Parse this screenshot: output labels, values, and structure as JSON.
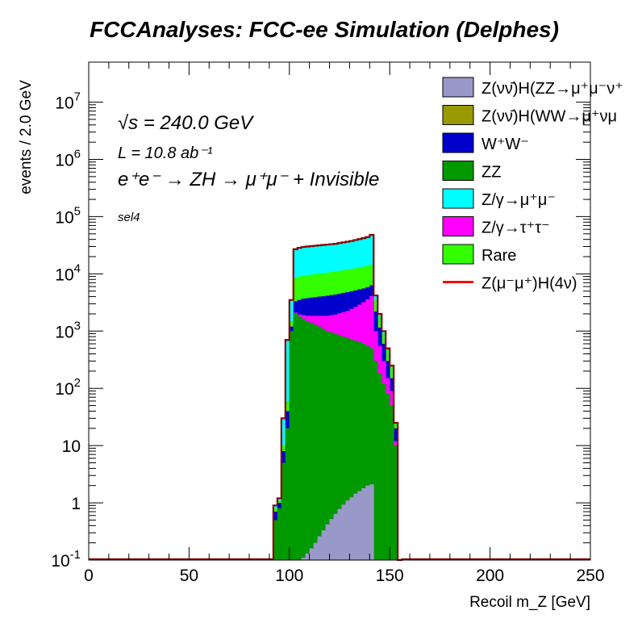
{
  "chart_data": {
    "type": "area",
    "title": "FCCAnalyses: FCC-ee Simulation (Delphes)",
    "xlabel": "Recoil m_Z [GeV]",
    "ylabel": "events / 2.0 GeV",
    "xlim": [
      0,
      250
    ],
    "ylim": [
      0.1,
      50000000
    ],
    "y_scale": "log",
    "x_ticks": [
      "0",
      "50",
      "100",
      "150",
      "200",
      "250"
    ],
    "y_ticks": [
      "10^-1",
      "1",
      "10",
      "10^2",
      "10^3",
      "10^4",
      "10^5",
      "10^6",
      "10^7"
    ],
    "bin_width": 2.0,
    "stacked": true,
    "annotations": {
      "sqrt_s": "√s = 240.0 GeV",
      "lumi": "L = 10.8 ab⁻¹",
      "process": "e⁺e⁻ → ZH → μ⁺μ⁻ + Invisible",
      "selection": "sel4"
    },
    "legend": {
      "position": "top-right",
      "entries": [
        {
          "label": "Z(νν̄)H(ZZ→μ⁺μ⁻ν⁺",
          "color": "#9999c9",
          "style": "fill"
        },
        {
          "label": "Z(νν̄)H(WW→μ⁺νμ",
          "color": "#999900",
          "style": "fill"
        },
        {
          "label": "W⁺W⁻",
          "color": "#0000cc",
          "style": "fill"
        },
        {
          "label": "ZZ",
          "color": "#009900",
          "style": "fill"
        },
        {
          "label": "Z/γ→μ⁺μ⁻",
          "color": "#00ffff",
          "style": "fill"
        },
        {
          "label": "Z/γ→τ⁺τ⁻",
          "color": "#ff00ff",
          "style": "fill"
        },
        {
          "label": "Rare",
          "color": "#33ff00",
          "style": "fill"
        },
        {
          "label": "Z(μ⁻μ⁺)H(4ν)",
          "color": "#ff0000",
          "style": "line"
        }
      ]
    },
    "bins": [
      92,
      94,
      96,
      98,
      100,
      102,
      104,
      106,
      108,
      110,
      112,
      114,
      116,
      118,
      120,
      122,
      124,
      126,
      128,
      130,
      132,
      134,
      136,
      138,
      140,
      142,
      144,
      146,
      148,
      150,
      152,
      154
    ],
    "stack": [
      {
        "name": "Z(νν̄)H(ZZ→μ⁺μ⁻ν⁺",
        "color": "#9999c9",
        "top": [
          0.1,
          0.1,
          0.1,
          0.1,
          0.1,
          0.1,
          0.1,
          0.11,
          0.13,
          0.16,
          0.2,
          0.26,
          0.33,
          0.42,
          0.52,
          0.64,
          0.78,
          0.93,
          1.1,
          1.25,
          1.45,
          1.6,
          1.8,
          2.0,
          2.1,
          0.1,
          0.1,
          0.1,
          0.1,
          0.1,
          0.1,
          0.1
        ]
      },
      {
        "name": "ZZ",
        "color": "#009900",
        "top": [
          0.5,
          0.8,
          5,
          20,
          1000,
          2000,
          1800,
          1650,
          1500,
          1400,
          1300,
          1200,
          1100,
          1000,
          950,
          900,
          850,
          800,
          760,
          720,
          680,
          640,
          600,
          550,
          500,
          300,
          180,
          120,
          80,
          50,
          10,
          0.1
        ]
      },
      {
        "name": "Z/γ→τ⁺τ⁻",
        "color": "#ff00ff",
        "top": [
          0.5,
          0.8,
          5,
          20,
          1000,
          2100,
          1950,
          1900,
          1850,
          1850,
          1850,
          1850,
          1850,
          1850,
          1900,
          1950,
          2050,
          2150,
          2250,
          2450,
          2650,
          2900,
          3200,
          3600,
          4100,
          1000,
          550,
          300,
          150,
          90,
          12,
          0.1
        ]
      },
      {
        "name": "W⁺W⁻",
        "color": "#0000cc",
        "top": [
          0.7,
          1.0,
          8,
          40,
          1200,
          3300,
          3500,
          3700,
          3750,
          3850,
          3900,
          4000,
          4050,
          4150,
          4250,
          4350,
          4500,
          4650,
          4800,
          4950,
          5150,
          5350,
          5550,
          5850,
          6300,
          2200,
          1150,
          600,
          300,
          150,
          20,
          0.1
        ]
      },
      {
        "name": "Z(νν̄)H(WW→μ⁺νμ",
        "color": "#999900",
        "top": [
          0.7,
          1.0,
          8,
          40,
          1200,
          3300,
          3500,
          3700,
          3750,
          3850,
          3900,
          4000,
          4050,
          4150,
          4250,
          4350,
          4500,
          4650,
          4800,
          4950,
          5150,
          5350,
          5550,
          5850,
          6300,
          2200,
          1150,
          600,
          300,
          150,
          20,
          0.1
        ]
      },
      {
        "name": "Rare",
        "color": "#33ff00",
        "top": [
          0.8,
          1.1,
          10,
          60,
          1500,
          8500,
          9000,
          9200,
          9500,
          9700,
          9900,
          10100,
          10300,
          10500,
          10800,
          11000,
          11300,
          11600,
          11900,
          12200,
          12600,
          13000,
          13400,
          13900,
          14500,
          3500,
          1800,
          900,
          500,
          250,
          25,
          0.1
        ]
      },
      {
        "name": "Z/γ→μ⁺μ⁻",
        "color": "#00ffff",
        "top": [
          0.9,
          1.2,
          30,
          700,
          3500,
          27000,
          28500,
          29500,
          30000,
          30500,
          31000,
          31500,
          32000,
          32500,
          33000,
          33500,
          34500,
          35500,
          36500,
          37500,
          39000,
          40500,
          42000,
          44000,
          48000,
          4200,
          2000,
          1000,
          500,
          250,
          25,
          0.1
        ]
      }
    ],
    "signal": {
      "name": "Z(μ⁻μ⁺)H(4ν)",
      "color": "#ff0000",
      "values": [
        0.9,
        1.2,
        30,
        700,
        3500,
        27000,
        28500,
        29500,
        30000,
        30500,
        31000,
        31500,
        32000,
        32500,
        33000,
        33500,
        34500,
        35500,
        36500,
        37500,
        39000,
        40500,
        42000,
        44000,
        48000,
        4200,
        2000,
        1000,
        500,
        250,
        25,
        0.1
      ]
    }
  }
}
